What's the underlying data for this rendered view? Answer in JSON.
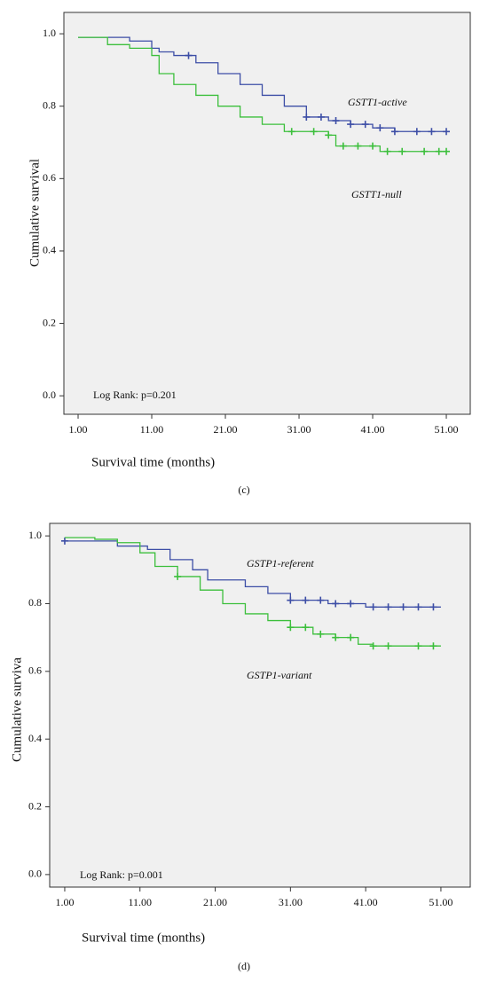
{
  "chart_data": [
    {
      "type": "step",
      "caption": "(c)",
      "ylabel": "Cumulative survival",
      "xlabel": "Survival time (months)",
      "annotation": "Log Rank: p=0.201",
      "x": [
        1,
        5,
        8,
        11,
        12,
        14,
        17,
        20,
        23,
        26,
        29,
        32,
        35,
        36,
        38,
        41,
        42,
        44,
        51
      ],
      "series": [
        {
          "name": "GSTT1-active",
          "color": "#3d4ea6",
          "values": [
            0.99,
            0.99,
            0.98,
            0.96,
            0.95,
            0.94,
            0.92,
            0.89,
            0.86,
            0.83,
            0.8,
            0.77,
            0.76,
            0.76,
            0.75,
            0.74,
            0.74,
            0.73,
            0.73
          ],
          "censored": [
            16,
            32,
            34,
            36,
            38,
            40,
            42,
            44,
            47,
            49,
            51
          ]
        },
        {
          "name": "GSTT1-null",
          "color": "#3cbf3c",
          "values": [
            0.99,
            0.97,
            0.96,
            0.94,
            0.89,
            0.86,
            0.83,
            0.8,
            0.77,
            0.75,
            0.73,
            0.73,
            0.72,
            0.69,
            0.69,
            0.69,
            0.675,
            0.675,
            0.675
          ],
          "censored": [
            30,
            33,
            35,
            37,
            39,
            41,
            43,
            45,
            48,
            50,
            51
          ]
        }
      ],
      "xlim": [
        -0.93,
        54.25
      ],
      "ylim": [
        -0.051,
        1.059
      ],
      "xticks": [
        {
          "value": 1,
          "label": "1.00"
        },
        {
          "value": 11,
          "label": "11.00"
        },
        {
          "value": 21,
          "label": "21.00"
        },
        {
          "value": 31,
          "label": "31.00"
        },
        {
          "value": 41,
          "label": "41.00"
        },
        {
          "value": 51,
          "label": "51.00"
        }
      ],
      "yticks": [
        {
          "value": 0,
          "label": "0.0"
        },
        0.2,
        0.4,
        0.6,
        0.8,
        {
          "value": 1,
          "label": "1.0"
        }
      ]
    },
    {
      "type": "step",
      "caption": "(d)",
      "ylabel": "Cumulative surviva",
      "xlabel": "Survival time (months)",
      "annotation": "Log Rank: p=0.001",
      "x": [
        1,
        5,
        8,
        11,
        12,
        13,
        15,
        16,
        18,
        19,
        20,
        22,
        25,
        28,
        31,
        34,
        36,
        37,
        40,
        41,
        42,
        51
      ],
      "series": [
        {
          "name": "GSTP1-referent",
          "color": "#3d4ea6",
          "values": [
            0.985,
            0.985,
            0.97,
            0.97,
            0.96,
            0.96,
            0.93,
            0.93,
            0.9,
            0.9,
            0.87,
            0.87,
            0.85,
            0.83,
            0.81,
            0.81,
            0.8,
            0.8,
            0.8,
            0.79,
            0.79,
            0.79
          ],
          "censored": [
            1,
            31,
            33,
            35,
            37,
            39,
            42,
            44,
            46,
            48,
            50
          ]
        },
        {
          "name": "GSTP1-variant",
          "color": "#3cbf3c",
          "values": [
            0.995,
            0.99,
            0.98,
            0.95,
            0.95,
            0.91,
            0.91,
            0.88,
            0.88,
            0.84,
            0.84,
            0.8,
            0.77,
            0.75,
            0.73,
            0.71,
            0.71,
            0.7,
            0.68,
            0.68,
            0.675,
            0.675
          ],
          "censored": [
            16,
            31,
            33,
            35,
            37,
            39,
            42,
            44,
            48,
            50
          ]
        }
      ],
      "xlim": [
        -1.0,
        54.9
      ],
      "ylim": [
        -0.037,
        1.037
      ],
      "xticks": [
        {
          "value": 1,
          "label": "1.00"
        },
        {
          "value": 11,
          "label": "11.00"
        },
        {
          "value": 21,
          "label": "21.00"
        },
        {
          "value": 31,
          "label": "31.00"
        },
        {
          "value": 41,
          "label": "41.00"
        },
        {
          "value": 51,
          "label": "51.00"
        }
      ],
      "yticks": [
        {
          "value": 0,
          "label": "0.0"
        },
        0.2,
        0.4,
        0.6,
        0.8,
        {
          "value": 1,
          "label": "1.0"
        }
      ]
    }
  ]
}
